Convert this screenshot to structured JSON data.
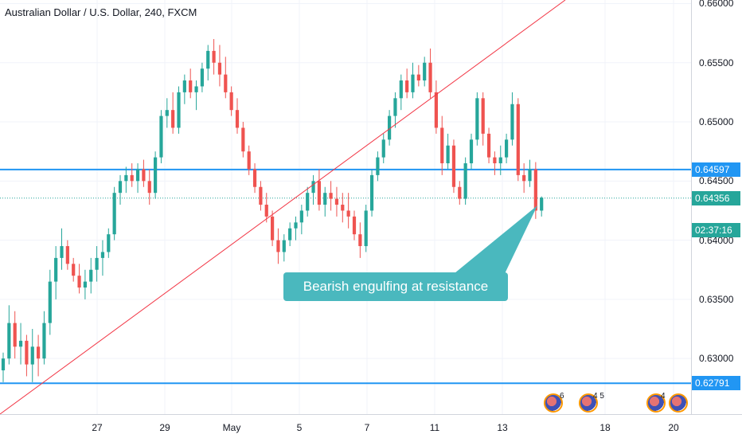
{
  "header": {
    "title": "Australian Dollar / U.S. Dollar, 240, FXCM"
  },
  "colors": {
    "up": "#26a69a",
    "down": "#ef5350",
    "trendline": "#f23645",
    "hline": "#2196f3",
    "current": "#26a69a",
    "callout_bg": "#4ab8be",
    "axis_text": "#131722"
  },
  "price_ticks": [
    "0.66000",
    "0.65500",
    "0.65000",
    "0.64500",
    "0.64000",
    "0.63500",
    "0.63000"
  ],
  "price_tags": [
    {
      "label": "0.64597",
      "value": 0.64597,
      "color": "#2196f3"
    },
    {
      "label": "0.64356",
      "value": 0.64356,
      "color": "#26a69a"
    },
    {
      "label": "02:37:16",
      "value": 0.64082,
      "color": "#26a69a"
    },
    {
      "label": "0.62791",
      "value": 0.62791,
      "color": "#2196f3"
    }
  ],
  "time_ticks": [
    "27",
    "29",
    "May",
    "5",
    "7",
    "11",
    "13",
    "18",
    "20"
  ],
  "annotation": {
    "text": "Bearish engulfing at resistance"
  },
  "events": [
    {
      "icon": "us-flag-icon",
      "count": "6"
    },
    {
      "icon": "us-flag-icon",
      "count": "4 5"
    },
    {
      "icon": "us-flag-icon",
      "count": "4"
    },
    {
      "icon": "au-flag-icon",
      "count": ""
    }
  ],
  "chart_data": {
    "type": "candlestick",
    "title": "Australian Dollar / U.S. Dollar, 240, FXCM",
    "ylim": [
      0.6253,
      0.6603
    ],
    "horizontal_lines": [
      0.64597,
      0.62791
    ],
    "current_price": 0.64356,
    "trendline": {
      "from": 0.6253,
      "to": 0.6603
    },
    "candles": [
      [
        0.629,
        0.6305,
        0.628,
        0.63
      ],
      [
        0.63,
        0.6345,
        0.6295,
        0.633
      ],
      [
        0.633,
        0.634,
        0.63,
        0.631
      ],
      [
        0.631,
        0.633,
        0.6295,
        0.6315
      ],
      [
        0.6315,
        0.632,
        0.6285,
        0.6295
      ],
      [
        0.6295,
        0.6325,
        0.628,
        0.631
      ],
      [
        0.631,
        0.632,
        0.6285,
        0.63
      ],
      [
        0.63,
        0.634,
        0.6295,
        0.633
      ],
      [
        0.633,
        0.6375,
        0.632,
        0.6365
      ],
      [
        0.6365,
        0.6395,
        0.635,
        0.6385
      ],
      [
        0.6385,
        0.641,
        0.6375,
        0.6395
      ],
      [
        0.6395,
        0.64,
        0.6375,
        0.638
      ],
      [
        0.638,
        0.6385,
        0.6365,
        0.637
      ],
      [
        0.637,
        0.638,
        0.6355,
        0.636
      ],
      [
        0.636,
        0.6375,
        0.635,
        0.6365
      ],
      [
        0.6365,
        0.6385,
        0.6355,
        0.6375
      ],
      [
        0.6375,
        0.6395,
        0.6365,
        0.6385
      ],
      [
        0.6385,
        0.64,
        0.637,
        0.639
      ],
      [
        0.639,
        0.641,
        0.6385,
        0.6405
      ],
      [
        0.6405,
        0.6445,
        0.64,
        0.644
      ],
      [
        0.644,
        0.6455,
        0.643,
        0.645
      ],
      [
        0.645,
        0.6462,
        0.644,
        0.6455
      ],
      [
        0.6455,
        0.6465,
        0.6445,
        0.645
      ],
      [
        0.645,
        0.6465,
        0.644,
        0.646
      ],
      [
        0.646,
        0.6468,
        0.6445,
        0.645
      ],
      [
        0.645,
        0.646,
        0.643,
        0.644
      ],
      [
        0.644,
        0.6475,
        0.6435,
        0.647
      ],
      [
        0.647,
        0.651,
        0.6465,
        0.6505
      ],
      [
        0.6505,
        0.652,
        0.6495,
        0.651
      ],
      [
        0.651,
        0.6525,
        0.649,
        0.6495
      ],
      [
        0.6495,
        0.653,
        0.649,
        0.6525
      ],
      [
        0.6525,
        0.654,
        0.6515,
        0.6535
      ],
      [
        0.6535,
        0.6545,
        0.652,
        0.6525
      ],
      [
        0.6525,
        0.6535,
        0.651,
        0.653
      ],
      [
        0.653,
        0.655,
        0.6525,
        0.6545
      ],
      [
        0.6545,
        0.6565,
        0.6535,
        0.656
      ],
      [
        0.656,
        0.657,
        0.654,
        0.655
      ],
      [
        0.655,
        0.6565,
        0.653,
        0.654
      ],
      [
        0.654,
        0.6555,
        0.652,
        0.6525
      ],
      [
        0.6525,
        0.653,
        0.6505,
        0.651
      ],
      [
        0.651,
        0.652,
        0.649,
        0.6495
      ],
      [
        0.6495,
        0.65,
        0.647,
        0.6475
      ],
      [
        0.6475,
        0.648,
        0.6455,
        0.646
      ],
      [
        0.646,
        0.6465,
        0.644,
        0.6445
      ],
      [
        0.6445,
        0.645,
        0.6425,
        0.643
      ],
      [
        0.643,
        0.644,
        0.6415,
        0.642
      ],
      [
        0.642,
        0.6425,
        0.6395,
        0.64
      ],
      [
        0.64,
        0.641,
        0.638,
        0.639
      ],
      [
        0.639,
        0.6405,
        0.6382,
        0.64
      ],
      [
        0.64,
        0.6415,
        0.6395,
        0.641
      ],
      [
        0.641,
        0.642,
        0.64,
        0.6415
      ],
      [
        0.6415,
        0.643,
        0.6405,
        0.6425
      ],
      [
        0.6425,
        0.6445,
        0.642,
        0.644
      ],
      [
        0.644,
        0.6455,
        0.643,
        0.645
      ],
      [
        0.645,
        0.646,
        0.6425,
        0.643
      ],
      [
        0.643,
        0.6445,
        0.642,
        0.644
      ],
      [
        0.644,
        0.645,
        0.6425,
        0.6435
      ],
      [
        0.6435,
        0.6445,
        0.642,
        0.643
      ],
      [
        0.643,
        0.644,
        0.6415,
        0.6425
      ],
      [
        0.6425,
        0.644,
        0.641,
        0.642
      ],
      [
        0.642,
        0.6425,
        0.64,
        0.6405
      ],
      [
        0.6405,
        0.6415,
        0.6385,
        0.6395
      ],
      [
        0.6395,
        0.643,
        0.639,
        0.6425
      ],
      [
        0.6425,
        0.646,
        0.642,
        0.6455
      ],
      [
        0.6455,
        0.6475,
        0.645,
        0.647
      ],
      [
        0.647,
        0.649,
        0.6465,
        0.6485
      ],
      [
        0.6485,
        0.651,
        0.648,
        0.6505
      ],
      [
        0.6505,
        0.6525,
        0.6495,
        0.652
      ],
      [
        0.652,
        0.654,
        0.651,
        0.6535
      ],
      [
        0.6535,
        0.6545,
        0.652,
        0.6525
      ],
      [
        0.6525,
        0.655,
        0.652,
        0.654
      ],
      [
        0.654,
        0.6548,
        0.653,
        0.6535
      ],
      [
        0.6535,
        0.6555,
        0.653,
        0.655
      ],
      [
        0.655,
        0.6562,
        0.652,
        0.6525
      ],
      [
        0.6525,
        0.6535,
        0.649,
        0.6495
      ],
      [
        0.6495,
        0.6505,
        0.6455,
        0.6465
      ],
      [
        0.6465,
        0.649,
        0.646,
        0.648
      ],
      [
        0.648,
        0.6485,
        0.644,
        0.6445
      ],
      [
        0.6445,
        0.645,
        0.643,
        0.6435
      ],
      [
        0.6435,
        0.647,
        0.643,
        0.6465
      ],
      [
        0.6465,
        0.649,
        0.646,
        0.6485
      ],
      [
        0.6485,
        0.6525,
        0.648,
        0.652
      ],
      [
        0.652,
        0.6525,
        0.648,
        0.649
      ],
      [
        0.649,
        0.6495,
        0.6465,
        0.647
      ],
      [
        0.647,
        0.6475,
        0.6455,
        0.6465
      ],
      [
        0.6465,
        0.648,
        0.6455,
        0.647
      ],
      [
        0.647,
        0.649,
        0.6465,
        0.6485
      ],
      [
        0.6485,
        0.6525,
        0.648,
        0.6515
      ],
      [
        0.6515,
        0.652,
        0.645,
        0.6455
      ],
      [
        0.6455,
        0.6465,
        0.644,
        0.645
      ],
      [
        0.645,
        0.6468,
        0.6445,
        0.646
      ],
      [
        0.646,
        0.6466,
        0.6418,
        0.6425
      ],
      [
        0.6425,
        0.6437,
        0.642,
        0.6436
      ]
    ]
  }
}
